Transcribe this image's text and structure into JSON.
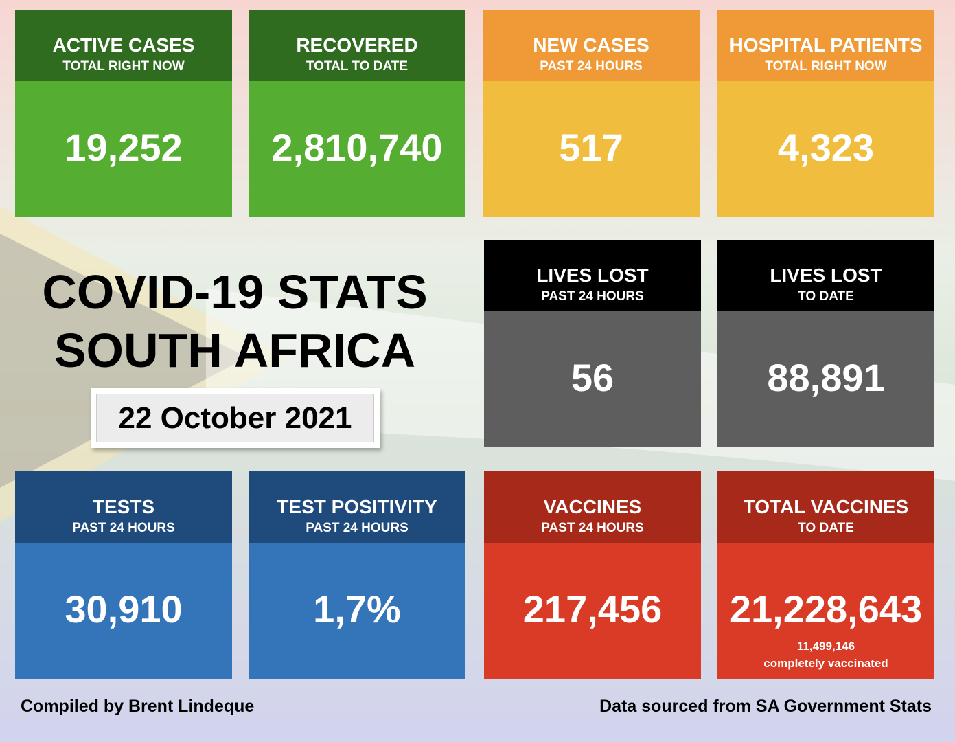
{
  "header": {
    "title_lines": [
      "COVID-19 STATS",
      "SOUTH AFRICA"
    ],
    "date": "22 October 2021"
  },
  "cards": [
    {
      "title": "ACTIVE CASES",
      "subtitle": "TOTAL RIGHT NOW",
      "value": "19,252"
    },
    {
      "title": "RECOVERED",
      "subtitle": "TOTAL TO DATE",
      "value": "2,810,740"
    },
    {
      "title": "NEW CASES",
      "subtitle": "PAST 24 HOURS",
      "value": "517"
    },
    {
      "title": "HOSPITAL PATIENTS",
      "subtitle": "TOTAL RIGHT NOW",
      "value": "4,323"
    },
    {
      "title": "LIVES LOST",
      "subtitle": "PAST 24 HOURS",
      "value": "56"
    },
    {
      "title": "LIVES LOST",
      "subtitle": "TO DATE",
      "value": "88,891"
    },
    {
      "title": "TESTS",
      "subtitle": "PAST 24 HOURS",
      "value": "30,910"
    },
    {
      "title": "TEST POSITIVITY",
      "subtitle": "PAST 24 HOURS",
      "value": "1,7%"
    },
    {
      "title": "VACCINES",
      "subtitle": "PAST 24 HOURS",
      "value": "217,456"
    },
    {
      "title": "TOTAL VACCINES",
      "subtitle": "TO DATE",
      "value": "21,228,643",
      "note": [
        "11,499,146",
        "completely vaccinated"
      ]
    }
  ],
  "footer": {
    "left": "Compiled by Brent Lindeque",
    "right": "Data sourced from SA Government Stats"
  }
}
